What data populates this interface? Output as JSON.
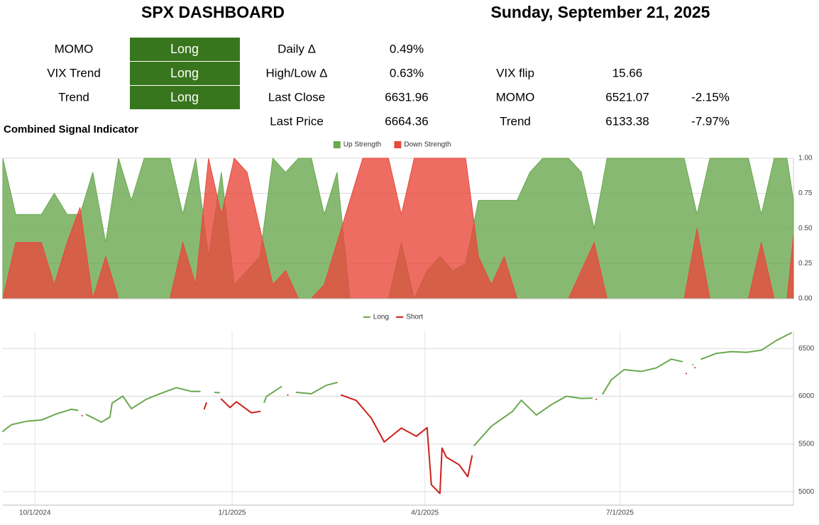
{
  "header": {
    "title": "SPX DASHBOARD",
    "date": "Sunday, September 21, 2025"
  },
  "signals": [
    {
      "label": "MOMO",
      "value": "Long"
    },
    {
      "label": "VIX Trend",
      "value": "Long"
    },
    {
      "label": "Trend",
      "value": "Long"
    }
  ],
  "stats": [
    {
      "label": "Daily Δ",
      "value": "0.49%"
    },
    {
      "label": "High/Low Δ",
      "value": "0.63%"
    },
    {
      "label": "Last Close",
      "value": "6631.96"
    },
    {
      "label": "Last Price",
      "value": "6664.36"
    }
  ],
  "levels": [
    {
      "label": "VIX flip",
      "value": "15.66"
    },
    {
      "label": "MOMO",
      "value": "6521.07",
      "change": "-2.15%"
    },
    {
      "label": "Trend",
      "value": "6133.38",
      "change": "-7.97%"
    }
  ],
  "section_title": "Combined Signal Indicator",
  "chart_data": [
    {
      "type": "area",
      "legend": "top",
      "x": [
        "2024-09-16",
        "2024-09-22",
        "2024-09-28",
        "2024-10-04",
        "2024-10-10",
        "2024-10-16",
        "2024-10-22",
        "2024-10-28",
        "2024-11-03",
        "2024-11-09",
        "2024-11-15",
        "2024-11-21",
        "2024-11-27",
        "2024-12-03",
        "2024-12-09",
        "2024-12-15",
        "2024-12-21",
        "2024-12-27",
        "2025-01-02",
        "2025-01-08",
        "2025-01-14",
        "2025-01-20",
        "2025-01-26",
        "2025-02-01",
        "2025-02-07",
        "2025-02-13",
        "2025-02-19",
        "2025-02-25",
        "2025-03-03",
        "2025-03-09",
        "2025-03-15",
        "2025-03-21",
        "2025-03-27",
        "2025-04-02",
        "2025-04-08",
        "2025-04-14",
        "2025-04-20",
        "2025-04-26",
        "2025-05-02",
        "2025-05-08",
        "2025-05-14",
        "2025-05-20",
        "2025-05-26",
        "2025-06-01",
        "2025-06-07",
        "2025-06-13",
        "2025-06-19",
        "2025-06-25",
        "2025-07-01",
        "2025-07-07",
        "2025-07-13",
        "2025-07-19",
        "2025-07-25",
        "2025-07-31",
        "2025-08-06",
        "2025-08-12",
        "2025-08-18",
        "2025-08-24",
        "2025-08-30",
        "2025-09-05",
        "2025-09-11",
        "2025-09-17",
        "2025-09-20"
      ],
      "series": [
        {
          "name": "Up Strength",
          "color": "#6aa84f",
          "values": [
            1.0,
            0.6,
            0.6,
            0.6,
            0.75,
            0.6,
            0.6,
            0.9,
            0.4,
            1.0,
            0.7,
            1.0,
            1.0,
            1.0,
            0.6,
            1.0,
            0.3,
            0.9,
            0.1,
            0.2,
            0.3,
            1.0,
            0.9,
            1.0,
            1.0,
            0.6,
            0.9,
            0,
            0,
            0,
            0,
            0.4,
            0,
            0.2,
            0.3,
            0.2,
            0.25,
            0.7,
            0.7,
            0.7,
            0.7,
            0.9,
            1.0,
            1.0,
            1.0,
            0.9,
            0.5,
            1.0,
            1.0,
            1.0,
            1.0,
            1.0,
            1.0,
            1.0,
            0.6,
            1.0,
            1.0,
            1.0,
            1.0,
            0.6,
            1.0,
            1.0,
            0.7
          ]
        },
        {
          "name": "Down Strength",
          "color": "#e8493c",
          "values": [
            0,
            0.4,
            0.4,
            0.4,
            0.1,
            0.4,
            0.65,
            0,
            0.3,
            0,
            0,
            0,
            0,
            0,
            0.4,
            0.1,
            1.0,
            0.6,
            1.0,
            0.9,
            0.5,
            0.1,
            0.2,
            0,
            0,
            0.1,
            0.4,
            0.7,
            1.0,
            1.0,
            1.0,
            0.6,
            1.0,
            1.0,
            1.0,
            1.0,
            1.0,
            0.3,
            0.1,
            0.3,
            0,
            0,
            0,
            0,
            0,
            0.2,
            0.4,
            0,
            0,
            0,
            0,
            0,
            0,
            0,
            0.5,
            0,
            0,
            0,
            0,
            0.4,
            0,
            0,
            0.45
          ]
        }
      ],
      "xlim": [
        "2024-09-16",
        "2025-09-20"
      ],
      "ylim": [
        0,
        1
      ],
      "yticks": [
        {
          "value": 0,
          "label": "0.00"
        },
        {
          "value": 0.25,
          "label": "0.25"
        },
        {
          "value": 0.5,
          "label": "0.50"
        },
        {
          "value": 0.75,
          "label": "0.75"
        },
        {
          "value": 1,
          "label": "1.00"
        }
      ],
      "grid": true
    },
    {
      "type": "line",
      "legend": "top",
      "x": [
        "2024-09-16",
        "2024-09-20",
        "2024-09-27",
        "2024-10-04",
        "2024-10-11",
        "2024-10-18",
        "2024-10-21",
        "2024-10-23",
        "2024-10-25",
        "2024-11-01",
        "2024-11-05",
        "2024-11-06",
        "2024-11-11",
        "2024-11-15",
        "2024-11-22",
        "2024-11-29",
        "2024-12-06",
        "2024-12-13",
        "2024-12-17",
        "2024-12-19",
        "2024-12-20",
        "2024-12-24",
        "2024-12-26",
        "2024-12-27",
        "2024-12-31",
        "2025-01-03",
        "2025-01-10",
        "2025-01-14",
        "2025-01-16",
        "2025-01-17",
        "2025-01-24",
        "2025-01-27",
        "2025-01-31",
        "2025-02-07",
        "2025-02-14",
        "2025-02-19",
        "2025-02-21",
        "2025-02-28",
        "2025-03-07",
        "2025-03-13",
        "2025-03-21",
        "2025-03-28",
        "2025-04-02",
        "2025-04-04",
        "2025-04-08",
        "2025-04-09",
        "2025-04-11",
        "2025-04-17",
        "2025-04-21",
        "2025-04-23",
        "2025-04-24",
        "2025-05-02",
        "2025-05-12",
        "2025-05-16",
        "2025-05-23",
        "2025-05-30",
        "2025-06-06",
        "2025-06-13",
        "2025-06-18",
        "2025-06-20",
        "2025-06-23",
        "2025-06-27",
        "2025-07-03",
        "2025-07-11",
        "2025-07-18",
        "2025-07-25",
        "2025-07-30",
        "2025-08-01",
        "2025-08-04",
        "2025-08-05",
        "2025-08-08",
        "2025-08-15",
        "2025-08-22",
        "2025-08-29",
        "2025-09-05",
        "2025-09-12",
        "2025-09-19"
      ],
      "series": [
        {
          "name": "Long",
          "color": "#6aa84f",
          "values": [
            5633,
            5702,
            5738,
            5751,
            5815,
            5864,
            5853,
            null,
            5808,
            5729,
            5782,
            5929,
            6001,
            5870,
            5969,
            6032,
            6090,
            6051,
            6050,
            null,
            null,
            6040,
            6037,
            null,
            null,
            null,
            null,
            null,
            5937,
            5997,
            6101,
            null,
            6041,
            6026,
            6115,
            6144,
            null,
            null,
            null,
            null,
            null,
            null,
            null,
            null,
            null,
            null,
            null,
            null,
            null,
            null,
            5484,
            5686,
            5844,
            5958,
            5803,
            5912,
            6000,
            5977,
            5981,
            null,
            6025,
            6173,
            6279,
            6260,
            6297,
            6389,
            6363,
            null,
            6329,
            null,
            6389,
            6449,
            6467,
            6460,
            6482,
            6584,
            6664
          ]
        },
        {
          "name": "Short",
          "color": "#cc1f1a",
          "values": [
            null,
            null,
            null,
            null,
            null,
            null,
            null,
            5797,
            null,
            null,
            null,
            null,
            null,
            null,
            null,
            null,
            null,
            null,
            null,
            5867,
            5930,
            null,
            null,
            5970,
            5882,
            5942,
            5827,
            5842,
            null,
            null,
            null,
            6012,
            null,
            null,
            null,
            null,
            6013,
            5955,
            5770,
            5521,
            5667,
            5581,
            5671,
            5074,
            4982,
            5457,
            5363,
            5282,
            5158,
            5376,
            null,
            null,
            null,
            null,
            null,
            null,
            null,
            null,
            null,
            5968,
            null,
            null,
            null,
            null,
            null,
            null,
            null,
            6238,
            null,
            6299,
            null,
            null,
            null,
            null,
            null,
            null,
            null
          ]
        }
      ],
      "xlim": [
        "2024-09-16",
        "2025-09-20"
      ],
      "xticks": [
        {
          "value": "2024-10-01",
          "label": "10/1/2024"
        },
        {
          "value": "2025-01-01",
          "label": "1/1/2025"
        },
        {
          "value": "2025-04-01",
          "label": "4/1/2025"
        },
        {
          "value": "2025-07-01",
          "label": "7/1/2025"
        }
      ],
      "ylim": [
        4860,
        6680
      ],
      "yticks": [
        5000,
        5500,
        6000,
        6500
      ],
      "grid": true
    }
  ]
}
